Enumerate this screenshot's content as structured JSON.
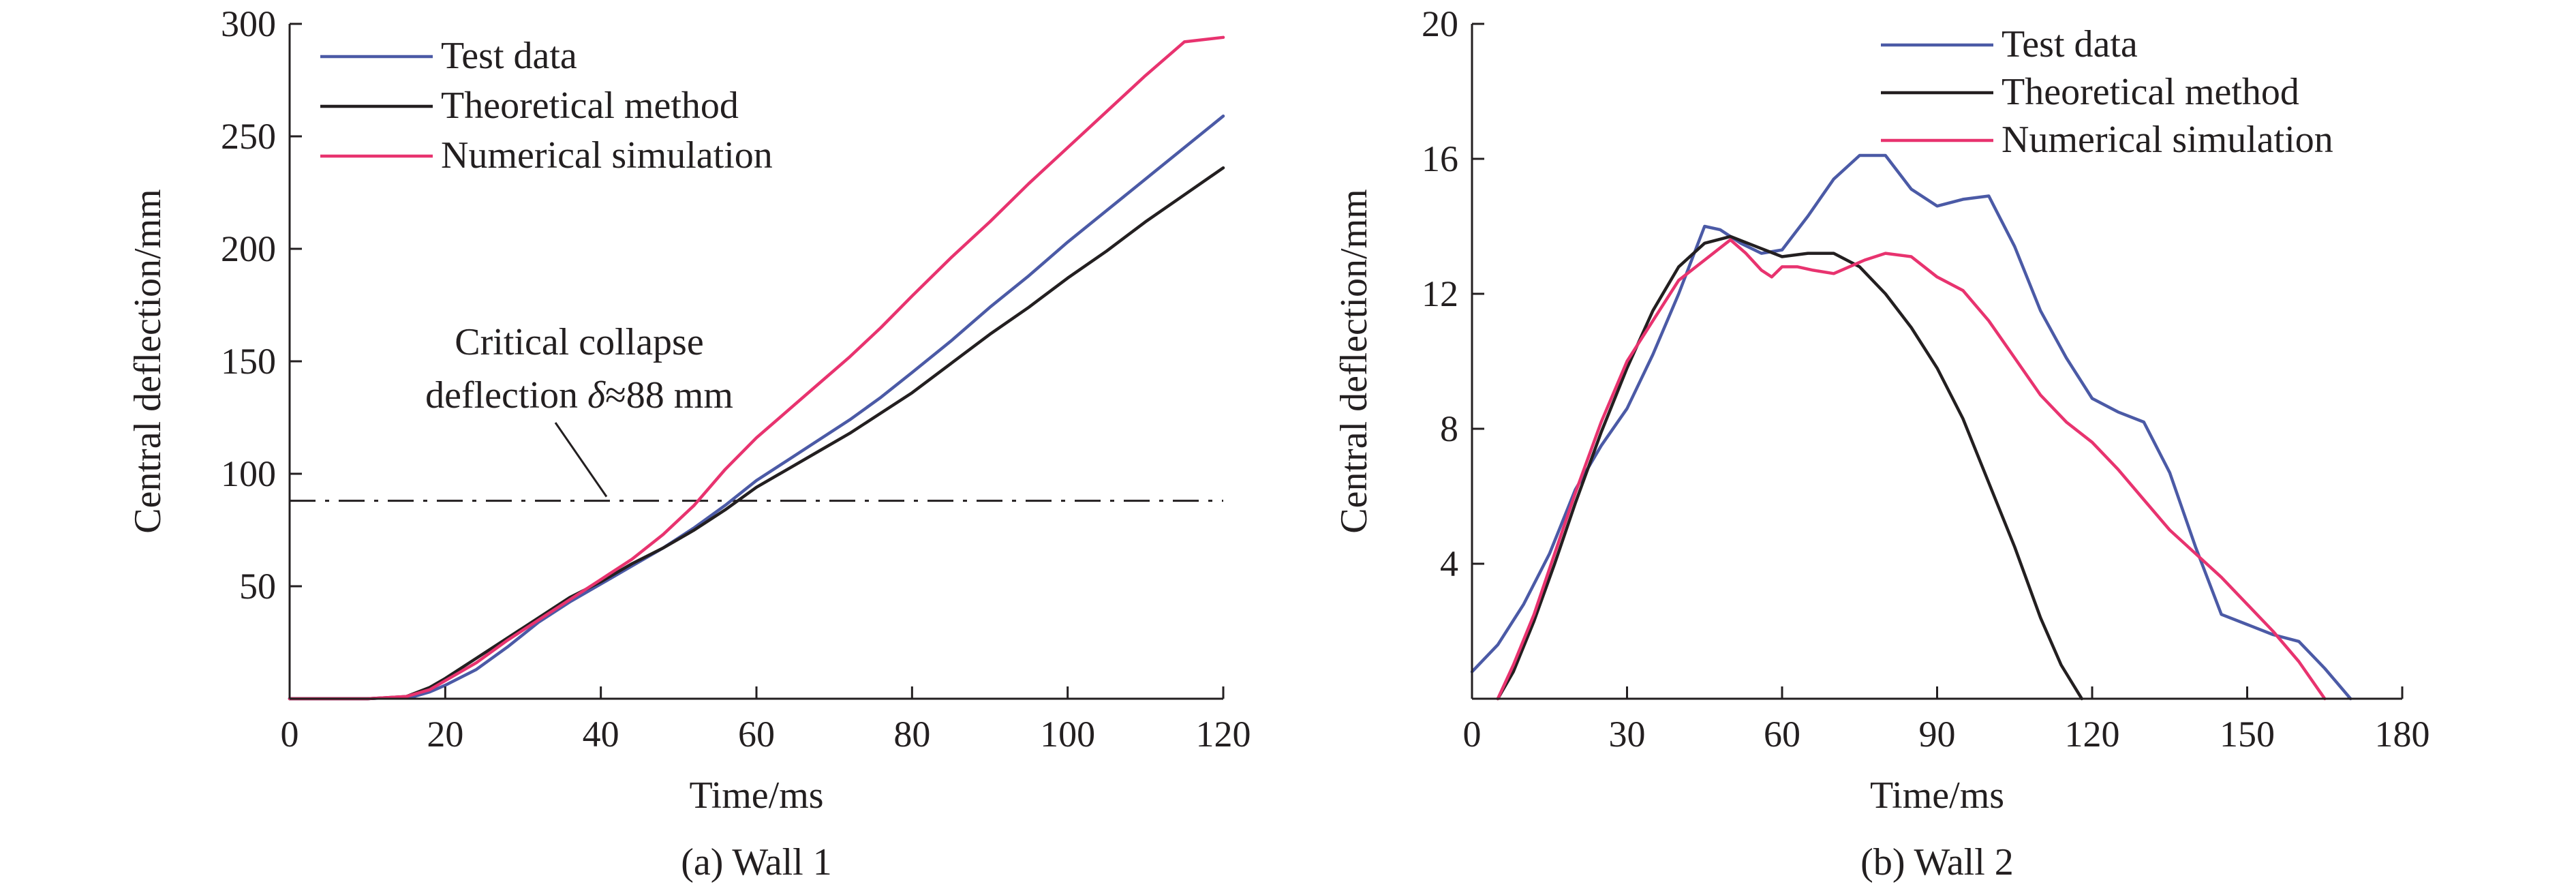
{
  "chart_data": [
    {
      "type": "line",
      "caption": "(a) Wall 1",
      "xlabel": "Time/ms",
      "ylabel": "Central deflection/mm",
      "xlim": [
        0,
        120
      ],
      "ylim": [
        0,
        300
      ],
      "xticks": [
        0,
        20,
        40,
        60,
        80,
        100,
        120
      ],
      "yticks": [
        50,
        100,
        150,
        200,
        250,
        300
      ],
      "legend_position": "top-left",
      "series": [
        {
          "name": "Test data",
          "color": "#4b5aa6",
          "x": [
            0,
            10,
            16,
            18,
            20,
            24,
            28,
            32,
            36,
            40,
            44,
            48,
            52,
            56,
            60,
            64,
            68,
            72,
            76,
            80,
            85,
            90,
            95,
            100,
            105,
            110,
            115,
            120
          ],
          "y": [
            0,
            0,
            1,
            3,
            6,
            13,
            23,
            34,
            43,
            51,
            59,
            67,
            76,
            86,
            97,
            106,
            115,
            124,
            134,
            145,
            159,
            174,
            188,
            203,
            217,
            231,
            245,
            259
          ]
        },
        {
          "name": "Theoretical method",
          "color": "#231f20",
          "x": [
            0,
            10,
            15,
            18,
            20,
            24,
            28,
            32,
            36,
            40,
            44,
            48,
            52,
            56,
            60,
            64,
            68,
            72,
            76,
            80,
            85,
            90,
            95,
            100,
            105,
            110,
            115,
            120
          ],
          "y": [
            0,
            0,
            1,
            5,
            9,
            18,
            27,
            36,
            45,
            52,
            60,
            67,
            75,
            84,
            94,
            102,
            110,
            118,
            127,
            136,
            149,
            162,
            174,
            187,
            199,
            212,
            224,
            236
          ]
        },
        {
          "name": "Numerical simulation",
          "color": "#e8336f",
          "x": [
            0,
            10,
            15,
            18,
            20,
            24,
            28,
            32,
            36,
            40,
            44,
            48,
            52,
            56,
            60,
            64,
            68,
            72,
            76,
            80,
            85,
            90,
            95,
            100,
            105,
            110,
            115,
            120
          ],
          "y": [
            0,
            0,
            1,
            4,
            8,
            16,
            26,
            35,
            44,
            53,
            62,
            73,
            86,
            102,
            116,
            128,
            140,
            152,
            165,
            179,
            196,
            212,
            229,
            245,
            261,
            277,
            292,
            294
          ]
        }
      ],
      "reference_line": {
        "y": 88,
        "style": "dash-dot",
        "color": "#231f20"
      },
      "annotation": {
        "line1": "Critical collapse",
        "line2_prefix": "deflection ",
        "delta": "δ",
        "line2_suffix": "≈88 mm"
      }
    },
    {
      "type": "line",
      "caption": "(b) Wall 2",
      "xlabel": "Time/ms",
      "ylabel": "Central deflection/mm",
      "xlim": [
        0,
        180
      ],
      "ylim": [
        0,
        20
      ],
      "xticks": [
        0,
        30,
        60,
        90,
        120,
        150,
        180
      ],
      "yticks": [
        4,
        8,
        12,
        16,
        20
      ],
      "legend_position": "top-right",
      "series": [
        {
          "name": "Test data",
          "color": "#4b5aa6",
          "x": [
            0,
            5,
            10,
            15,
            20,
            25,
            30,
            35,
            40,
            45,
            48,
            52,
            56,
            60,
            65,
            70,
            75,
            80,
            85,
            90,
            95,
            100,
            105,
            110,
            115,
            120,
            125,
            130,
            135,
            140,
            145,
            150,
            155,
            160,
            165,
            170
          ],
          "y": [
            0.8,
            1.6,
            2.8,
            4.3,
            6.2,
            7.5,
            8.6,
            10.2,
            12.0,
            14.0,
            13.9,
            13.5,
            13.2,
            13.3,
            14.3,
            15.4,
            16.1,
            16.1,
            15.1,
            14.6,
            14.8,
            14.9,
            13.4,
            11.5,
            10.1,
            8.9,
            8.5,
            8.2,
            6.7,
            4.5,
            2.5,
            2.2,
            1.9,
            1.7,
            0.9,
            0.0
          ]
        },
        {
          "name": "Theoretical method",
          "color": "#231f20",
          "x": [
            5,
            8,
            12,
            16,
            20,
            25,
            30,
            35,
            40,
            45,
            50,
            55,
            60,
            65,
            70,
            75,
            80,
            85,
            90,
            95,
            100,
            105,
            110,
            114,
            118
          ],
          "y": [
            0,
            0.8,
            2.3,
            4.0,
            5.8,
            7.9,
            9.8,
            11.5,
            12.8,
            13.5,
            13.7,
            13.4,
            13.1,
            13.2,
            13.2,
            12.8,
            12.0,
            11.0,
            9.8,
            8.3,
            6.4,
            4.5,
            2.4,
            1.0,
            0
          ]
        },
        {
          "name": "Numerical simulation",
          "color": "#e8336f",
          "x": [
            5,
            8,
            12,
            16,
            20,
            25,
            30,
            35,
            40,
            45,
            50,
            53,
            56,
            58,
            60,
            63,
            66,
            70,
            73,
            76,
            80,
            85,
            90,
            95,
            100,
            105,
            110,
            115,
            120,
            125,
            130,
            135,
            140,
            145,
            150,
            155,
            160,
            165
          ],
          "y": [
            0,
            1.0,
            2.5,
            4.3,
            6.1,
            8.2,
            10.0,
            11.2,
            12.4,
            13.0,
            13.6,
            13.2,
            12.7,
            12.5,
            12.8,
            12.8,
            12.7,
            12.6,
            12.8,
            13.0,
            13.2,
            13.1,
            12.5,
            12.1,
            11.2,
            10.1,
            9.0,
            8.2,
            7.6,
            6.8,
            5.9,
            5.0,
            4.3,
            3.6,
            2.8,
            2.0,
            1.1,
            0
          ]
        }
      ]
    }
  ]
}
